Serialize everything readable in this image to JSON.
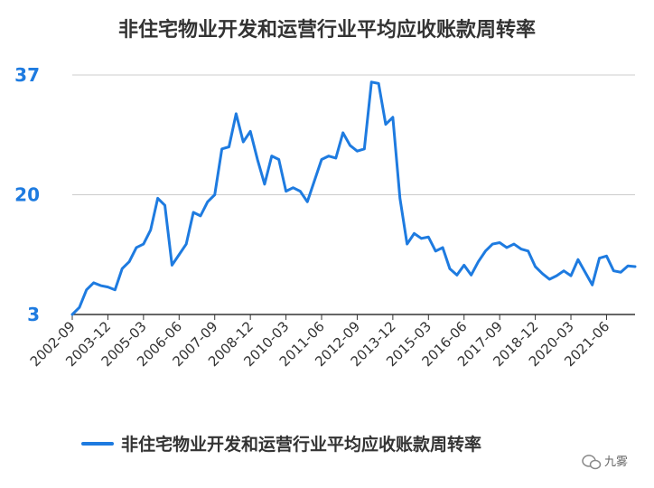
{
  "chart_data": {
    "type": "line",
    "title": "非住宅物业开发和运营行业平均应收账款周转率",
    "yticks": [
      3,
      20,
      37
    ],
    "ylim": [
      3,
      37
    ],
    "xticks": [
      "2002-09",
      "2003-12",
      "2005-03",
      "2006-06",
      "2007-09",
      "2008-12",
      "2010-03",
      "2011-06",
      "2012-09",
      "2013-12",
      "2015-03",
      "2016-06",
      "2017-09",
      "2018-12",
      "2020-03",
      "2021-06"
    ],
    "legend_position": "bottom",
    "series": [
      {
        "name": "非住宅物业开发和运营行业平均应收账款周转率",
        "color": "#1e7be0",
        "values": [
          3.0,
          4.0,
          6.5,
          7.5,
          7.1,
          6.9,
          6.5,
          9.5,
          10.5,
          12.5,
          13.0,
          15.0,
          19.5,
          18.5,
          10.0,
          11.5,
          13.0,
          17.5,
          17.0,
          19.0,
          20.0,
          26.5,
          26.8,
          31.5,
          27.5,
          29.0,
          25.0,
          21.5,
          25.5,
          25.0,
          20.5,
          21.0,
          20.5,
          19.0,
          22.0,
          25.0,
          25.5,
          25.2,
          28.8,
          27.0,
          26.2,
          26.5,
          36.0,
          35.8,
          30.0,
          31.0,
          19.5,
          13.0,
          14.5,
          13.8,
          14.0,
          12.0,
          12.5,
          9.5,
          8.6,
          10.0,
          8.6,
          10.5,
          12.0,
          13.0,
          13.2,
          12.5,
          13.0,
          12.3,
          12.0,
          9.8,
          8.8,
          8.0,
          8.5,
          9.2,
          8.5,
          10.8,
          9.0,
          7.2,
          11.0,
          11.3,
          9.2,
          9.0,
          9.9,
          9.8
        ]
      }
    ]
  },
  "watermark": {
    "icon": "wechat-icon",
    "text": "九雾"
  }
}
